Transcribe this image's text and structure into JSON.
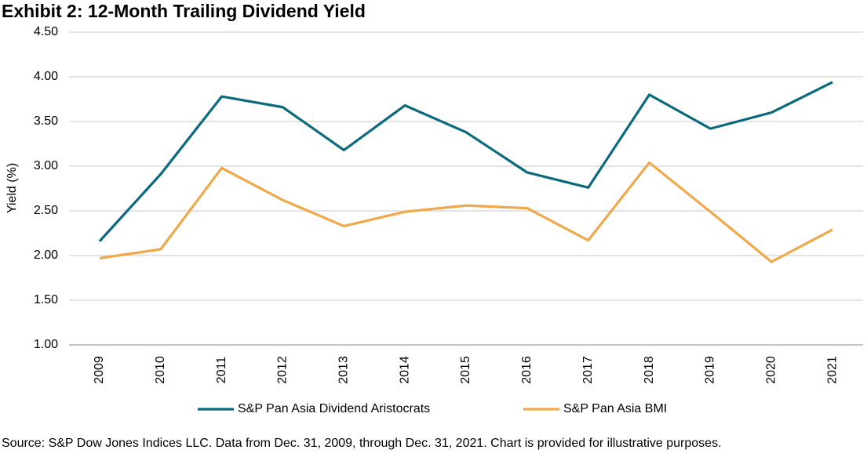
{
  "chart_data": {
    "type": "line",
    "title": "Exhibit 2: 12-Month Trailing Dividend Yield",
    "y_label": "Yield (%)",
    "categories": [
      "2009",
      "2010",
      "2011",
      "2012",
      "2013",
      "2014",
      "2015",
      "2016",
      "2017",
      "2018",
      "2019",
      "2020",
      "2021"
    ],
    "series": [
      {
        "name": "S&P Pan Asia Dividend Aristocrats",
        "color": "#0b6a7e",
        "values": [
          2.16,
          2.91,
          3.78,
          3.66,
          3.18,
          3.68,
          3.38,
          2.93,
          2.76,
          3.8,
          3.42,
          3.6,
          3.94
        ]
      },
      {
        "name": "S&P Pan Asia BMI",
        "color": "#f0a94a",
        "values": [
          1.97,
          2.07,
          2.98,
          2.62,
          2.33,
          2.49,
          2.56,
          2.53,
          2.17,
          3.04,
          2.49,
          1.93,
          2.29
        ]
      }
    ],
    "ylim": [
      1,
      4.5
    ],
    "yticks": [
      {
        "value": 1,
        "label": "1.00"
      },
      {
        "value": 1.5,
        "label": "1.50"
      },
      {
        "value": 2,
        "label": "2.00"
      },
      {
        "value": 2.5,
        "label": "2.50"
      },
      {
        "value": 3,
        "label": "3.00"
      },
      {
        "value": 3.5,
        "label": "3.50"
      },
      {
        "value": 4,
        "label": "4.00"
      },
      {
        "value": 4.5,
        "label": "4.50"
      }
    ],
    "grid": true,
    "legend": "bottom",
    "note": "Source: S&P Dow Jones Indices LLC. Data from Dec. 31, 2009, through Dec. 31, 2021. Chart is provided for illustrative purposes."
  }
}
